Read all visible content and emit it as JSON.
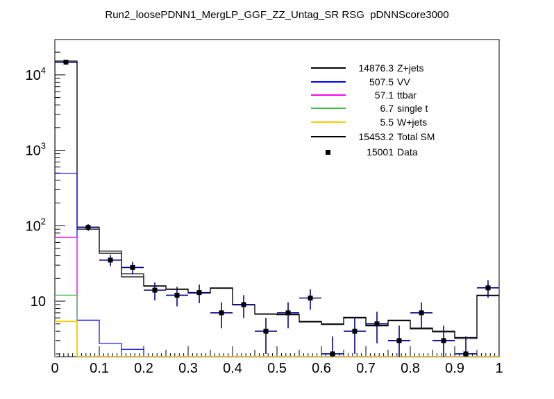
{
  "chart_data": {
    "type": "histogram",
    "title": "Run2_loosePDNN1_MergLP_GGF_ZZ_Untag_SR RSG  pDNNScore3000",
    "x_axis": {
      "min": 0,
      "max": 1,
      "major_tick_labels": [
        "0",
        "0.1",
        "0.2",
        "0.3",
        "0.4",
        "0.5",
        "0.6",
        "0.7",
        "0.8",
        "0.9",
        "1"
      ],
      "minor_tick_step": 0.01,
      "medium_tick_step": 0.05,
      "major_tick_step": 0.1
    },
    "y_axis": {
      "scale": "log",
      "min": 1.84,
      "max": 29400,
      "decade_labels": [
        {
          "base": "10",
          "exp": ""
        },
        {
          "base": "10",
          "exp": "2"
        },
        {
          "base": "10",
          "exp": "3"
        },
        {
          "base": "10",
          "exp": "4"
        }
      ]
    },
    "bin_width": 0.05,
    "series": [
      {
        "id": "zjets",
        "label": "Z+jets",
        "legend_value": "14876.3",
        "color": "#000000",
        "values": [
          14660,
          90,
          43,
          21,
          15.8,
          14.3,
          12.8,
          14.8,
          8.9,
          6.7,
          6.6,
          5.3,
          4.9,
          6.0,
          4.7,
          5.5,
          4.3,
          3.9,
          3.2,
          11.8
        ]
      },
      {
        "id": "totalsm",
        "label": "Total SM",
        "legend_value": "15453.2",
        "color": "#000000",
        "values": [
          15250,
          96,
          46,
          23,
          16,
          14.5,
          13,
          15,
          9,
          6.8,
          6.7,
          5.4,
          5.0,
          6.1,
          4.8,
          5.6,
          4.4,
          4.0,
          3.3,
          12
        ]
      },
      {
        "id": "vv",
        "label": "VV",
        "legend_value": "507.5",
        "color": "#0000ff",
        "values": [
          495,
          5.6,
          2.75,
          2.3,
          0,
          0,
          0,
          0,
          0,
          0,
          0,
          0,
          0,
          0,
          0,
          0,
          0,
          0,
          0,
          0
        ]
      },
      {
        "id": "ttbar",
        "label": "ttbar",
        "legend_value": "57.1",
        "color": "#ff00ff",
        "values": [
          70,
          0,
          0,
          0,
          0,
          0,
          0,
          0,
          0,
          0,
          0,
          0,
          0,
          0,
          0,
          0,
          0,
          0,
          0,
          0
        ]
      },
      {
        "id": "singlet",
        "label": "single t",
        "legend_value": "6.7",
        "color": "#44bb44",
        "values": [
          12,
          0,
          0,
          0,
          0,
          0,
          0,
          0,
          0,
          0,
          0,
          0,
          0,
          0,
          0,
          0,
          0,
          0,
          0,
          0
        ]
      },
      {
        "id": "wjets",
        "label": "W+jets",
        "legend_value": "5.5",
        "color": "#ffcc00",
        "values": [
          5.4,
          0,
          0,
          0,
          0,
          0,
          0,
          0,
          0,
          0,
          0,
          0,
          0,
          0,
          0,
          0,
          0,
          0,
          0,
          0
        ]
      }
    ],
    "data_points": {
      "label": "Data",
      "legend_value": "15001",
      "marker_color": "#000000",
      "error_color": "#00008b",
      "x": [
        0.025,
        0.075,
        0.125,
        0.175,
        0.225,
        0.275,
        0.325,
        0.375,
        0.425,
        0.475,
        0.525,
        0.575,
        0.625,
        0.675,
        0.725,
        0.775,
        0.825,
        0.875,
        0.925,
        0.975
      ],
      "values": [
        14725,
        95,
        35,
        28,
        14,
        12,
        13,
        7,
        9,
        4,
        7,
        11,
        2,
        4,
        5,
        3,
        7,
        3,
        2,
        15
      ]
    },
    "legend": {
      "entries": [
        {
          "value": "14876.3",
          "label": "Z+jets",
          "color": "#000000",
          "style": "line"
        },
        {
          "value": "507.5",
          "label": "VV",
          "color": "#0000ff",
          "style": "line"
        },
        {
          "value": "57.1",
          "label": "ttbar",
          "color": "#ff00ff",
          "style": "line"
        },
        {
          "value": "6.7",
          "label": "single t",
          "color": "#44bb44",
          "style": "line"
        },
        {
          "value": "5.5",
          "label": "W+jets",
          "color": "#ffcc00",
          "style": "line"
        },
        {
          "value": "15453.2",
          "label": "Total SM",
          "color": "#000000",
          "style": "line"
        },
        {
          "value": "15001",
          "label": "Data",
          "color": "#000000",
          "style": "marker"
        }
      ]
    }
  }
}
